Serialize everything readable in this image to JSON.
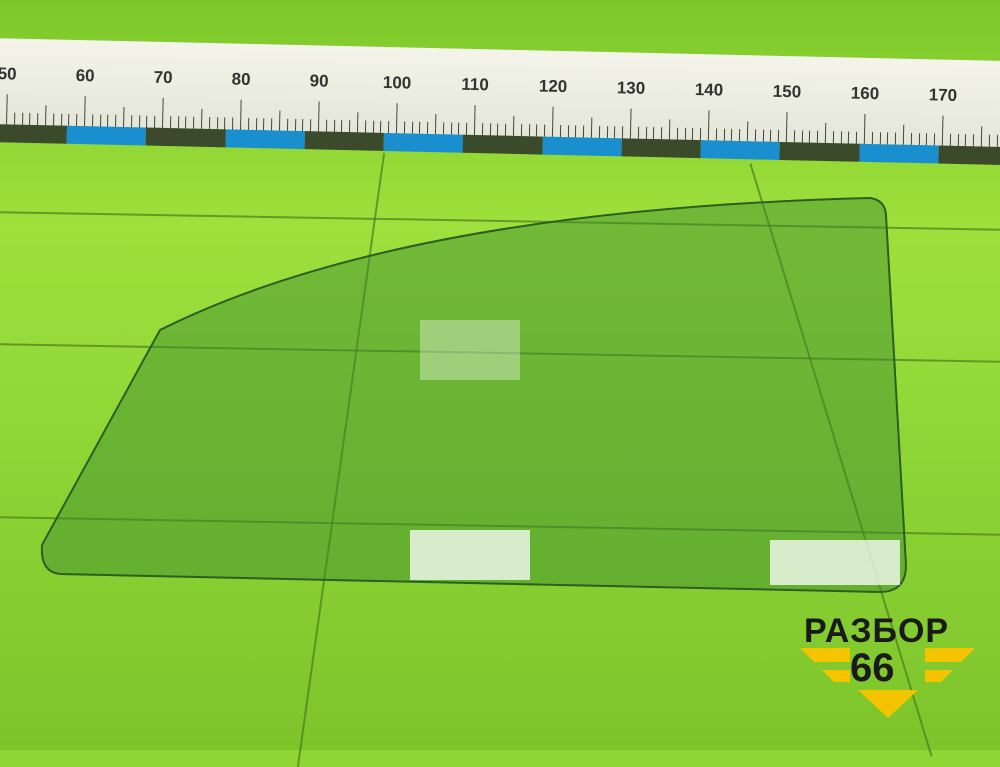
{
  "ruler": {
    "labels": [
      "50",
      "60",
      "70",
      "80",
      "90",
      "100",
      "110",
      "120",
      "130",
      "140",
      "150",
      "160",
      "170"
    ]
  },
  "logo": {
    "line1": "РАЗБОР",
    "line2": "66"
  },
  "colors": {
    "tile": "#8fd635",
    "glass": "#4f9a3a",
    "ruler_blue": "#1a8fd0",
    "logo_yellow": "#f5c400"
  }
}
